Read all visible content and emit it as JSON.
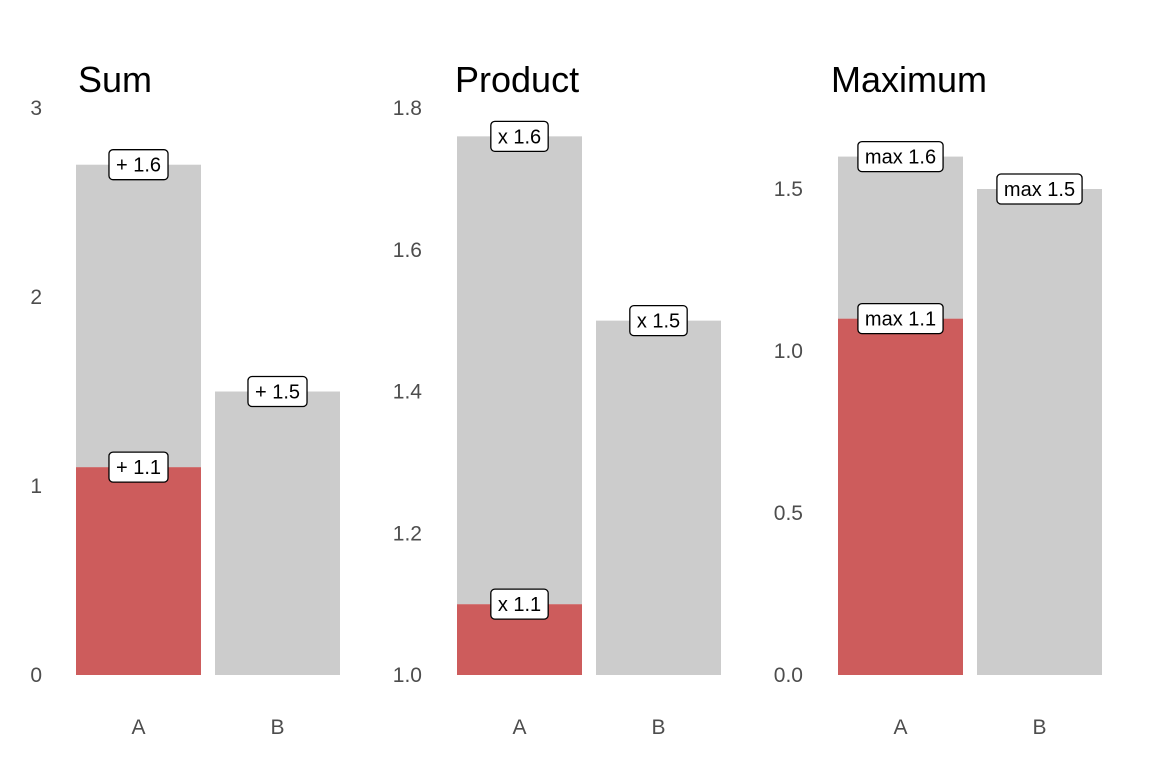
{
  "chart_data": [
    {
      "type": "bar",
      "title": "Sum",
      "categories": [
        "A",
        "B"
      ],
      "ylim": [
        0,
        3
      ],
      "yticks": [
        0,
        1,
        2,
        3
      ],
      "ytick_labels": [
        "0",
        "1",
        "2",
        "3"
      ],
      "bars": [
        {
          "category": "A",
          "base": 0,
          "segments": [
            {
              "from": 0,
              "to": 1.1,
              "color": "#cd5c5c",
              "label": "+ 1.1"
            },
            {
              "from": 1.1,
              "to": 2.7,
              "color": "#cccccc",
              "label": "+ 1.6"
            }
          ]
        },
        {
          "category": "B",
          "base": 0,
          "segments": [
            {
              "from": 0,
              "to": 1.5,
              "color": "#cccccc",
              "label": "+ 1.5"
            }
          ]
        }
      ]
    },
    {
      "type": "bar",
      "title": "Product",
      "categories": [
        "A",
        "B"
      ],
      "ylim": [
        1.0,
        1.8
      ],
      "yticks": [
        1.0,
        1.2,
        1.4,
        1.6,
        1.8
      ],
      "ytick_labels": [
        "1.0",
        "1.2",
        "1.4",
        "1.6",
        "1.8"
      ],
      "bars": [
        {
          "category": "A",
          "base": 1.0,
          "segments": [
            {
              "from": 1.0,
              "to": 1.1,
              "color": "#cd5c5c",
              "label": "x 1.1"
            },
            {
              "from": 1.1,
              "to": 1.76,
              "color": "#cccccc",
              "label": "x 1.6"
            }
          ]
        },
        {
          "category": "B",
          "base": 1.0,
          "segments": [
            {
              "from": 1.0,
              "to": 1.5,
              "color": "#cccccc",
              "label": "x 1.5"
            }
          ]
        }
      ]
    },
    {
      "type": "bar",
      "title": "Maximum",
      "categories": [
        "A",
        "B"
      ],
      "ylim": [
        0.0,
        1.75
      ],
      "yticks": [
        0.0,
        0.5,
        1.0,
        1.5
      ],
      "ytick_labels": [
        "0.0",
        "0.5",
        "1.0",
        "1.5"
      ],
      "bars": [
        {
          "category": "A",
          "base": 0,
          "segments": [
            {
              "from": 0,
              "to": 1.1,
              "color": "#cd5c5c",
              "label": "max 1.1"
            },
            {
              "from": 1.1,
              "to": 1.6,
              "color": "#cccccc",
              "label": "max 1.6"
            }
          ]
        },
        {
          "category": "B",
          "base": 0,
          "segments": [
            {
              "from": 0,
              "to": 1.5,
              "color": "#cccccc",
              "label": "max 1.5"
            }
          ]
        }
      ]
    }
  ],
  "colors": {
    "highlight": "#cd5c5c",
    "base": "#cccccc",
    "label_border": "#000000",
    "label_fill": "#ffffff"
  },
  "grid": false,
  "legend": "none"
}
